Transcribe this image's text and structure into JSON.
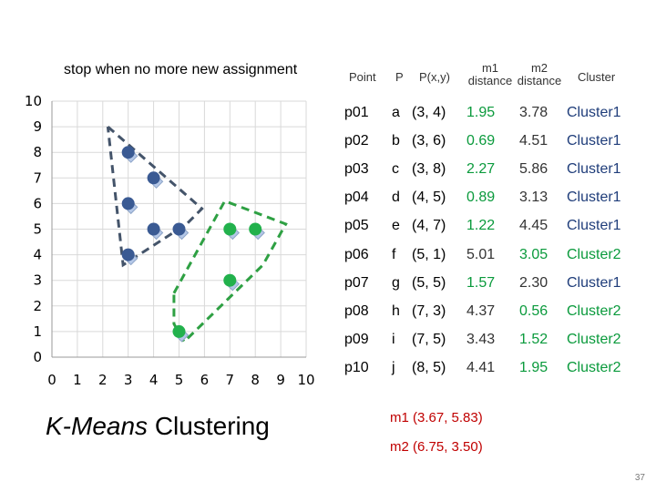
{
  "heading": "stop when no more new assignment",
  "headers": {
    "point": "Point",
    "p": "P",
    "pxy": "P(x,y)",
    "m1": "m1",
    "m2": "m2",
    "distance1": "distance",
    "distance2": "distance",
    "cluster": "Cluster"
  },
  "rows": [
    {
      "pid": "p01",
      "p": "a",
      "xy": "(3, 4)",
      "d1": "1.95",
      "d2": "3.78",
      "cluster": "Cluster1"
    },
    {
      "pid": "p02",
      "p": "b",
      "xy": "(3, 6)",
      "d1": "0.69",
      "d2": "4.51",
      "cluster": "Cluster1"
    },
    {
      "pid": "p03",
      "p": "c",
      "xy": "(3, 8)",
      "d1": "2.27",
      "d2": "5.86",
      "cluster": "Cluster1"
    },
    {
      "pid": "p04",
      "p": "d",
      "xy": "(4, 5)",
      "d1": "0.89",
      "d2": "3.13",
      "cluster": "Cluster1"
    },
    {
      "pid": "p05",
      "p": "e",
      "xy": "(4, 7)",
      "d1": "1.22",
      "d2": "4.45",
      "cluster": "Cluster1"
    },
    {
      "pid": "p06",
      "p": "f",
      "xy": "(5, 1)",
      "d1": "5.01",
      "d2": "3.05",
      "cluster": "Cluster2"
    },
    {
      "pid": "p07",
      "p": "g",
      "xy": "(5, 5)",
      "d1": "1.57",
      "d2": "2.30",
      "cluster": "Cluster1"
    },
    {
      "pid": "p08",
      "p": "h",
      "xy": "(7, 3)",
      "d1": "4.37",
      "d2": "0.56",
      "cluster": "Cluster2"
    },
    {
      "pid": "p09",
      "p": "i",
      "xy": "(7, 5)",
      "d1": "3.43",
      "d2": "1.52",
      "cluster": "Cluster2"
    },
    {
      "pid": "p10",
      "p": "j",
      "xy": "(8, 5)",
      "d1": "4.41",
      "d2": "1.95",
      "cluster": "Cluster2"
    }
  ],
  "title_italic": "K-Means",
  "title_rest": " Clustering",
  "centroid_m1": "m1  (3.67, 5.83)",
  "centroid_m2": "m2  (6.75, 3.50)",
  "page_number": "37",
  "colors": {
    "cluster1": "#3a5a93",
    "cluster2": "#22b14c",
    "cluster1_boundary": "#44546a",
    "cluster2_boundary": "#2ea043",
    "diamond": "#b4c7e7",
    "grid": "#d9d9d9",
    "centroid_text": "#c00000"
  },
  "chart_data": {
    "type": "scatter",
    "xlim": [
      0,
      10
    ],
    "ylim": [
      0,
      10
    ],
    "xticks": [
      0,
      1,
      2,
      3,
      4,
      5,
      6,
      7,
      8,
      9,
      10
    ],
    "yticks": [
      0,
      1,
      2,
      3,
      4,
      5,
      6,
      7,
      8,
      9,
      10
    ],
    "grid": true,
    "series": [
      {
        "cluster": "Cluster1",
        "points": [
          [
            3,
            4
          ],
          [
            3,
            6
          ],
          [
            3,
            8
          ],
          [
            4,
            5
          ],
          [
            4,
            7
          ],
          [
            5,
            5
          ]
        ]
      },
      {
        "cluster": "Cluster2",
        "points": [
          [
            5,
            1
          ],
          [
            7,
            3
          ],
          [
            7,
            5
          ],
          [
            8,
            5
          ]
        ]
      }
    ],
    "boundaries": [
      {
        "cluster": "Cluster1",
        "style": "dashed",
        "polygon": [
          [
            2.2,
            9.0
          ],
          [
            5.9,
            5.8
          ],
          [
            5.3,
            5.2
          ],
          [
            2.8,
            3.6
          ],
          [
            2.2,
            9.0
          ]
        ]
      },
      {
        "cluster": "Cluster2",
        "style": "dashed",
        "polygon": [
          [
            4.8,
            2.5
          ],
          [
            6.8,
            6.1
          ],
          [
            9.2,
            5.2
          ],
          [
            8.3,
            3.6
          ],
          [
            5.2,
            0.6
          ],
          [
            4.8,
            1.3
          ],
          [
            4.8,
            2.5
          ]
        ]
      }
    ]
  }
}
